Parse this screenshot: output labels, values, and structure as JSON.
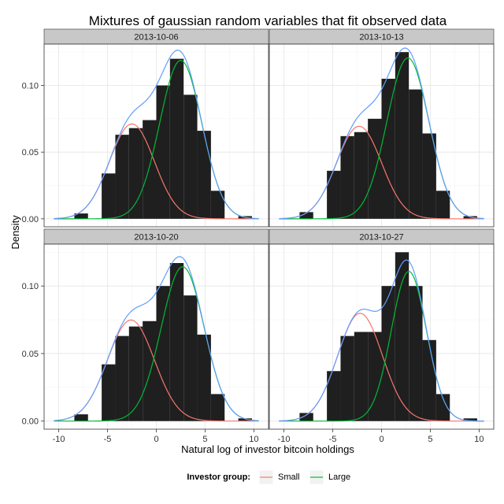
{
  "chart_data": {
    "type": "histogram",
    "title": "Mixtures of gaussian random variables that fit observed data",
    "xlabel": "Natural log of investor bitcoin holdings",
    "ylabel": "Density",
    "xlim": [
      -11.5,
      11.5
    ],
    "ylim": [
      -0.006,
      0.131
    ],
    "x_ticks": [
      -10,
      -5,
      0,
      5,
      10
    ],
    "y_ticks": [
      0.0,
      0.05,
      0.1
    ],
    "y_tick_labels": [
      "0.00",
      "0.05",
      "0.10"
    ],
    "grid": true,
    "legend": {
      "title": "Investor group:",
      "position": "bottom",
      "entries": [
        {
          "label": "Small",
          "color": "#F8766D"
        },
        {
          "label": "Large",
          "color": "#00BA38"
        }
      ]
    },
    "colors": {
      "bars": "#1f1f1f",
      "small": "#F8766D",
      "large": "#00BA38",
      "mixture": "#619CFF",
      "strip_bg": "#c8c8c8"
    },
    "bin_edges": [
      -9.8,
      -8.4,
      -7.0,
      -5.6,
      -4.2,
      -2.8,
      -1.4,
      0.0,
      1.4,
      2.8,
      4.2,
      5.6,
      7.0,
      8.4,
      9.8
    ],
    "panels": [
      {
        "label": "2013-10-06",
        "densities": [
          0.0,
          0.004,
          0.0,
          0.034,
          0.063,
          0.068,
          0.074,
          0.1,
          0.12,
          0.093,
          0.066,
          0.021,
          0.0,
          0.002
        ],
        "small": {
          "mean": -2.5,
          "sd": 2.3,
          "weight": 0.41
        },
        "large": {
          "mean": 2.5,
          "sd": 2.15,
          "weight": 0.64
        }
      },
      {
        "label": "2013-10-13",
        "densities": [
          0.0,
          0.005,
          0.0,
          0.036,
          0.062,
          0.065,
          0.075,
          0.105,
          0.125,
          0.097,
          0.064,
          0.021,
          0.0,
          0.002
        ],
        "small": {
          "mean": -2.3,
          "sd": 2.3,
          "weight": 0.4
        },
        "large": {
          "mean": 2.7,
          "sd": 2.15,
          "weight": 0.65
        }
      },
      {
        "label": "2013-10-20",
        "densities": [
          0.0,
          0.005,
          0.0,
          0.042,
          0.063,
          0.07,
          0.074,
          0.1,
          0.117,
          0.093,
          0.064,
          0.02,
          0.0,
          0.002
        ],
        "small": {
          "mean": -2.6,
          "sd": 2.4,
          "weight": 0.45
        },
        "large": {
          "mean": 2.7,
          "sd": 2.2,
          "weight": 0.63
        }
      },
      {
        "label": "2013-10-27",
        "densities": [
          0.0,
          0.006,
          0.0,
          0.037,
          0.063,
          0.066,
          0.066,
          0.1,
          0.125,
          0.1,
          0.06,
          0.02,
          0.0,
          0.002
        ],
        "small": {
          "mean": -2.2,
          "sd": 2.3,
          "weight": 0.46
        },
        "large": {
          "mean": 2.8,
          "sd": 1.8,
          "weight": 0.5
        }
      }
    ]
  }
}
